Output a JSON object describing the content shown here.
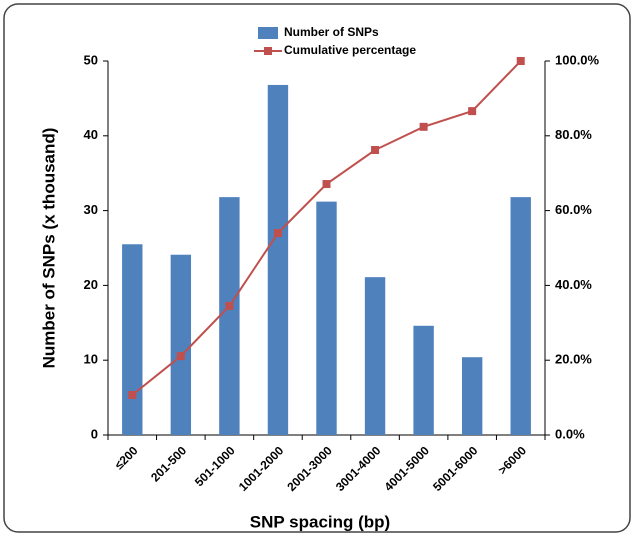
{
  "chart_data": {
    "type": "bar",
    "x_label": "SNP spacing (bp)",
    "y_label": "Number of SNPs (x thousand)",
    "categories": [
      "≤200",
      "201-500",
      "501-1000",
      "1001-2000",
      "2001-3000",
      "3001-4000",
      "4001-5000",
      "5001-6000",
      ">6000"
    ],
    "series": [
      {
        "name": "Number of SNPs",
        "type": "bar",
        "color": "#4f81bd",
        "values": [
          25.5,
          24.1,
          31.8,
          46.8,
          31.2,
          21.1,
          14.6,
          10.4,
          31.8
        ]
      },
      {
        "name": "Cumulative percentage",
        "type": "line",
        "axis": "y2",
        "color": "#c0504d",
        "values": [
          10.7,
          21.1,
          34.5,
          54.0,
          67.1,
          76.2,
          82.4,
          86.6,
          100
        ]
      }
    ],
    "ylim": [
      0,
      50
    ],
    "yticks": [
      0,
      10,
      20,
      30,
      40,
      50
    ],
    "y2lim": [
      0,
      100
    ],
    "y2ticks": [
      {
        "value": 0,
        "label": "0.0%"
      },
      {
        "value": 20,
        "label": "20.0%"
      },
      {
        "value": 40,
        "label": "40.0%"
      },
      {
        "value": 60,
        "label": "60.0%"
      },
      {
        "value": 80,
        "label": "80.0%"
      },
      {
        "value": 100,
        "label": "100.0%"
      }
    ],
    "grid": false
  }
}
